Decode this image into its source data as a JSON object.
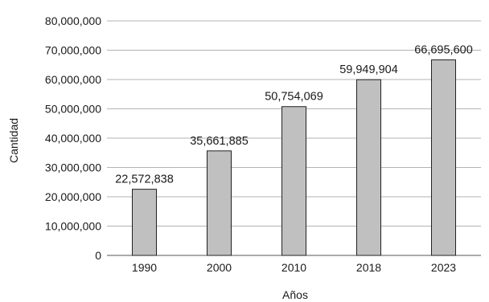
{
  "chart_data": {
    "type": "bar",
    "categories": [
      "1990",
      "2000",
      "2010",
      "2018",
      "2023"
    ],
    "values": [
      22572838,
      35661885,
      50754069,
      59949904,
      66695600
    ],
    "data_labels": [
      "22,572,838",
      "35,661,885",
      "50,754,069",
      "59,949,904",
      "66,695,600"
    ],
    "title": "",
    "xlabel": "Años",
    "ylabel": "Cantidad",
    "ylim": [
      0,
      80000000
    ],
    "yticks": [
      0,
      10000000,
      20000000,
      30000000,
      40000000,
      50000000,
      60000000,
      70000000,
      80000000
    ],
    "ytick_labels": [
      "0",
      "10,000,000",
      "20,000,000",
      "30,000,000",
      "40,000,000",
      "50,000,000",
      "60,000,000",
      "70,000,000",
      "80,000,000"
    ],
    "grid": true,
    "legend": "none",
    "colors": {
      "bar_fill": "#c0c0c0",
      "bar_stroke": "#222222",
      "grid": "#9a9a9a"
    }
  }
}
